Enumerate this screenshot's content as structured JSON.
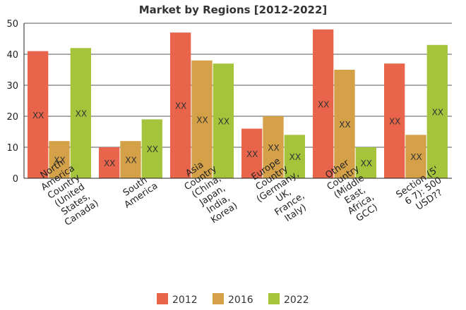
{
  "chart_data": {
    "type": "bar",
    "title": "Market by Regions [2012-2022]",
    "xlabel": "",
    "ylabel": "",
    "ylim": [
      0,
      50
    ],
    "yticks": [
      0,
      10,
      20,
      30,
      40,
      50
    ],
    "grid": true,
    "legend_position": "bottom-center",
    "categories": [
      [
        "North",
        "America",
        "Country",
        "(United",
        "States,",
        "Canada)"
      ],
      [
        "South",
        "America"
      ],
      [
        "Asia",
        "Country",
        "(China,",
        "Japan,",
        "India,",
        "Korea)"
      ],
      [
        "Europe",
        "Country",
        "(Germany,",
        "UK,",
        "France,",
        "Italy)"
      ],
      [
        "Other",
        "Country",
        "(Middle",
        "East,",
        "Africa,",
        "GCC)"
      ],
      [
        "Section (5'",
        "6 7): 500",
        "USD??"
      ]
    ],
    "data_label": "XX",
    "series": [
      {
        "name": "2012",
        "color": "#e8644a",
        "values": [
          41,
          10,
          47,
          16,
          48,
          37
        ]
      },
      {
        "name": "2016",
        "color": "#d4a048",
        "values": [
          12,
          12,
          38,
          20,
          35,
          14
        ]
      },
      {
        "name": "2022",
        "color": "#a5c43c",
        "values": [
          42,
          19,
          37,
          14,
          10,
          43
        ]
      }
    ]
  }
}
